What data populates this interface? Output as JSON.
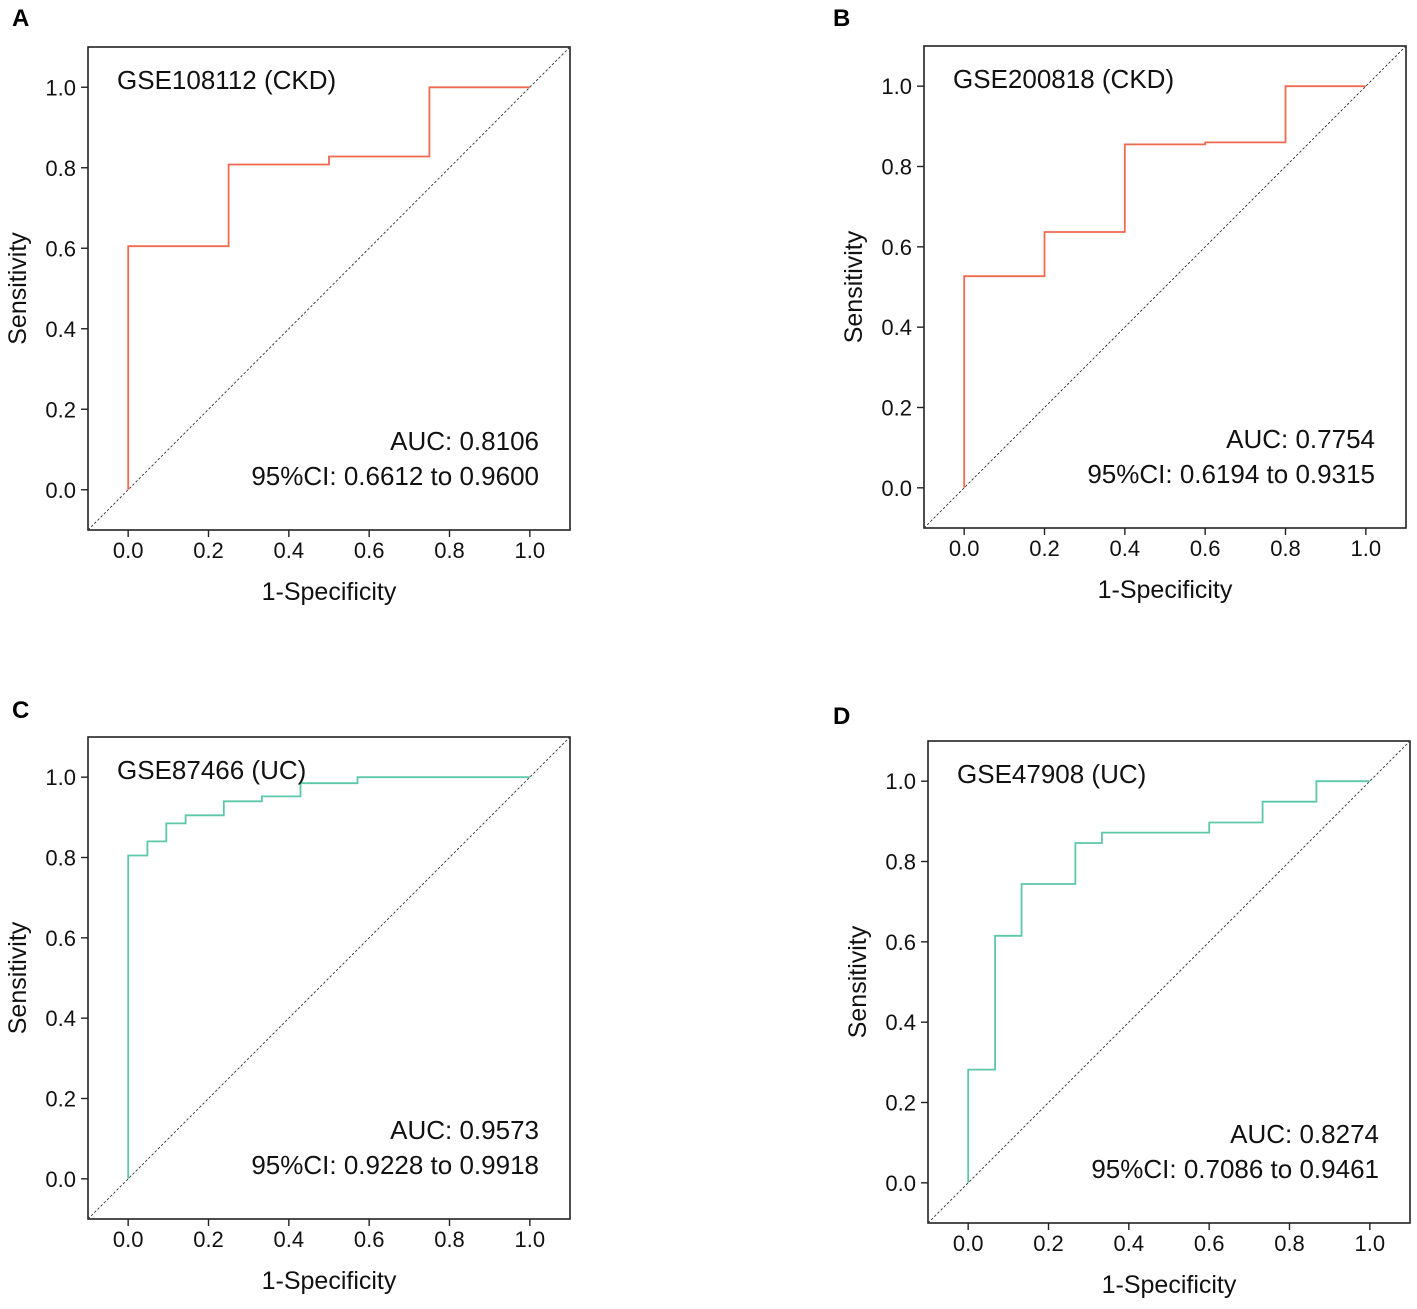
{
  "chart_data": [
    {
      "panel": "A",
      "type": "line",
      "title": "GSE108112 (CKD)",
      "xlabel": "1-Specificity",
      "ylabel": "Sensitivity",
      "xlim": [
        -0.1,
        1.1
      ],
      "ylim": [
        -0.1,
        1.1
      ],
      "xticks": [
        "0.0",
        "0.2",
        "0.4",
        "0.6",
        "0.8",
        "1.0"
      ],
      "yticks": [
        "0.0",
        "0.2",
        "0.4",
        "0.6",
        "0.8",
        "1.0"
      ],
      "color": "#ef6a50",
      "series": [
        {
          "name": "ROC",
          "x": [
            0,
            0,
            0.25,
            0.25,
            0.5,
            0.5,
            0.75,
            0.75,
            1.0
          ],
          "y": [
            0,
            0.605,
            0.605,
            0.808,
            0.808,
            0.828,
            0.828,
            1.0,
            1.0
          ]
        }
      ],
      "diagonal": true,
      "auc_text": "AUC: 0.8106",
      "ci_text": "95%CI: 0.6612 to 0.9600"
    },
    {
      "panel": "B",
      "type": "line",
      "title": "GSE200818 (CKD)",
      "xlabel": "1-Specificity",
      "ylabel": "Sensitivity",
      "xlim": [
        -0.1,
        1.1
      ],
      "ylim": [
        -0.1,
        1.1
      ],
      "xticks": [
        "0.0",
        "0.2",
        "0.4",
        "0.6",
        "0.8",
        "1.0"
      ],
      "yticks": [
        "0.0",
        "0.2",
        "0.4",
        "0.6",
        "0.8",
        "1.0"
      ],
      "color": "#ef6a50",
      "series": [
        {
          "name": "ROC",
          "x": [
            0,
            0,
            0.2,
            0.2,
            0.4,
            0.4,
            0.6,
            0.6,
            0.8,
            0.8,
            1.0
          ],
          "y": [
            0,
            0.527,
            0.527,
            0.637,
            0.637,
            0.855,
            0.855,
            0.86,
            0.86,
            1.0,
            1.0
          ]
        }
      ],
      "diagonal": true,
      "auc_text": "AUC: 0.7754",
      "ci_text": "95%CI: 0.6194 to 0.9315"
    },
    {
      "panel": "C",
      "type": "line",
      "title": "GSE87466 (UC)",
      "xlabel": "1-Specificity",
      "ylabel": "Sensitivity",
      "xlim": [
        -0.1,
        1.1
      ],
      "ylim": [
        -0.1,
        1.1
      ],
      "xticks": [
        "0.0",
        "0.2",
        "0.4",
        "0.6",
        "0.8",
        "1.0"
      ],
      "yticks": [
        "0.0",
        "0.2",
        "0.4",
        "0.6",
        "0.8",
        "1.0"
      ],
      "color": "#5cc8a8",
      "series": [
        {
          "name": "ROC",
          "x": [
            0,
            0,
            0.048,
            0.048,
            0.095,
            0.095,
            0.143,
            0.143,
            0.238,
            0.238,
            0.333,
            0.333,
            0.429,
            0.429,
            0.571,
            0.571,
            1.0
          ],
          "y": [
            0,
            0.805,
            0.805,
            0.84,
            0.84,
            0.885,
            0.885,
            0.905,
            0.905,
            0.94,
            0.94,
            0.952,
            0.952,
            0.985,
            0.985,
            1.0,
            1.0
          ]
        }
      ],
      "diagonal": true,
      "auc_text": "AUC: 0.9573",
      "ci_text": "95%CI: 0.9228 to 0.9918"
    },
    {
      "panel": "D",
      "type": "line",
      "title": "GSE47908 (UC)",
      "xlabel": "1-Specificity",
      "ylabel": "Sensitivity",
      "xlim": [
        -0.1,
        1.1
      ],
      "ylim": [
        -0.1,
        1.1
      ],
      "xticks": [
        "0.0",
        "0.2",
        "0.4",
        "0.6",
        "0.8",
        "1.0"
      ],
      "yticks": [
        "0.0",
        "0.2",
        "0.4",
        "0.6",
        "0.8",
        "1.0"
      ],
      "color": "#5cc8a8",
      "series": [
        {
          "name": "ROC",
          "x": [
            0,
            0,
            0.067,
            0.067,
            0.133,
            0.133,
            0.267,
            0.267,
            0.333,
            0.333,
            0.6,
            0.6,
            0.733,
            0.733,
            0.867,
            0.867,
            1.0
          ],
          "y": [
            0,
            0.282,
            0.282,
            0.615,
            0.615,
            0.744,
            0.744,
            0.846,
            0.846,
            0.872,
            0.872,
            0.897,
            0.897,
            0.949,
            0.949,
            1.0,
            1.0
          ]
        }
      ],
      "diagonal": true,
      "auc_text": "AUC: 0.8274",
      "ci_text": "95%CI: 0.7086 to 0.9461"
    }
  ]
}
